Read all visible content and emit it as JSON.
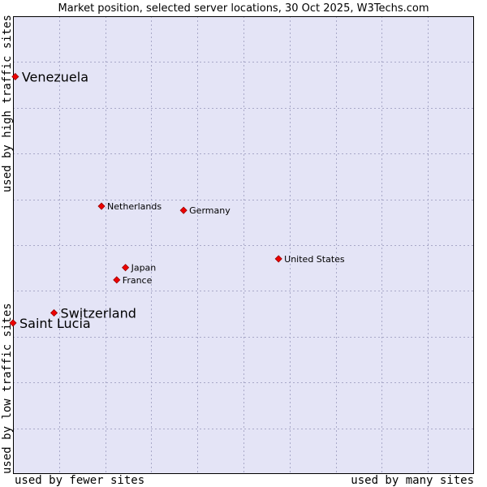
{
  "chart_data": {
    "type": "scatter",
    "title": "Market position, selected server locations, 30 Oct 2025, W3Techs.com",
    "xlabel_left": "used by fewer sites",
    "xlabel_right": "used by many sites",
    "ylabel_top": "used by high traffic sites",
    "ylabel_bottom": "used by low traffic sites",
    "xlim": [
      0,
      100
    ],
    "ylim": [
      0,
      100
    ],
    "grid": true,
    "colors": {
      "plot_bg": "#e4e4f6",
      "grid": "#a8a8c8",
      "border": "#000000",
      "marker": "#ee0000",
      "marker_edge": "#990000"
    },
    "points": [
      {
        "name": "Venezuela",
        "x": 0.5,
        "y": 86.8,
        "emphasis": true
      },
      {
        "name": "Netherlands",
        "x": 19.2,
        "y": 58.5,
        "emphasis": false
      },
      {
        "name": "Germany",
        "x": 37.0,
        "y": 57.6,
        "emphasis": false
      },
      {
        "name": "United States",
        "x": 57.6,
        "y": 47.0,
        "emphasis": false
      },
      {
        "name": "Japan",
        "x": 24.4,
        "y": 45.1,
        "emphasis": false
      },
      {
        "name": "France",
        "x": 22.5,
        "y": 42.4,
        "emphasis": false
      },
      {
        "name": "Switzerland",
        "x": 8.9,
        "y": 35.2,
        "emphasis": true
      },
      {
        "name": "Saint Lucia",
        "x": 0.0,
        "y": 33.0,
        "emphasis": true
      }
    ]
  }
}
